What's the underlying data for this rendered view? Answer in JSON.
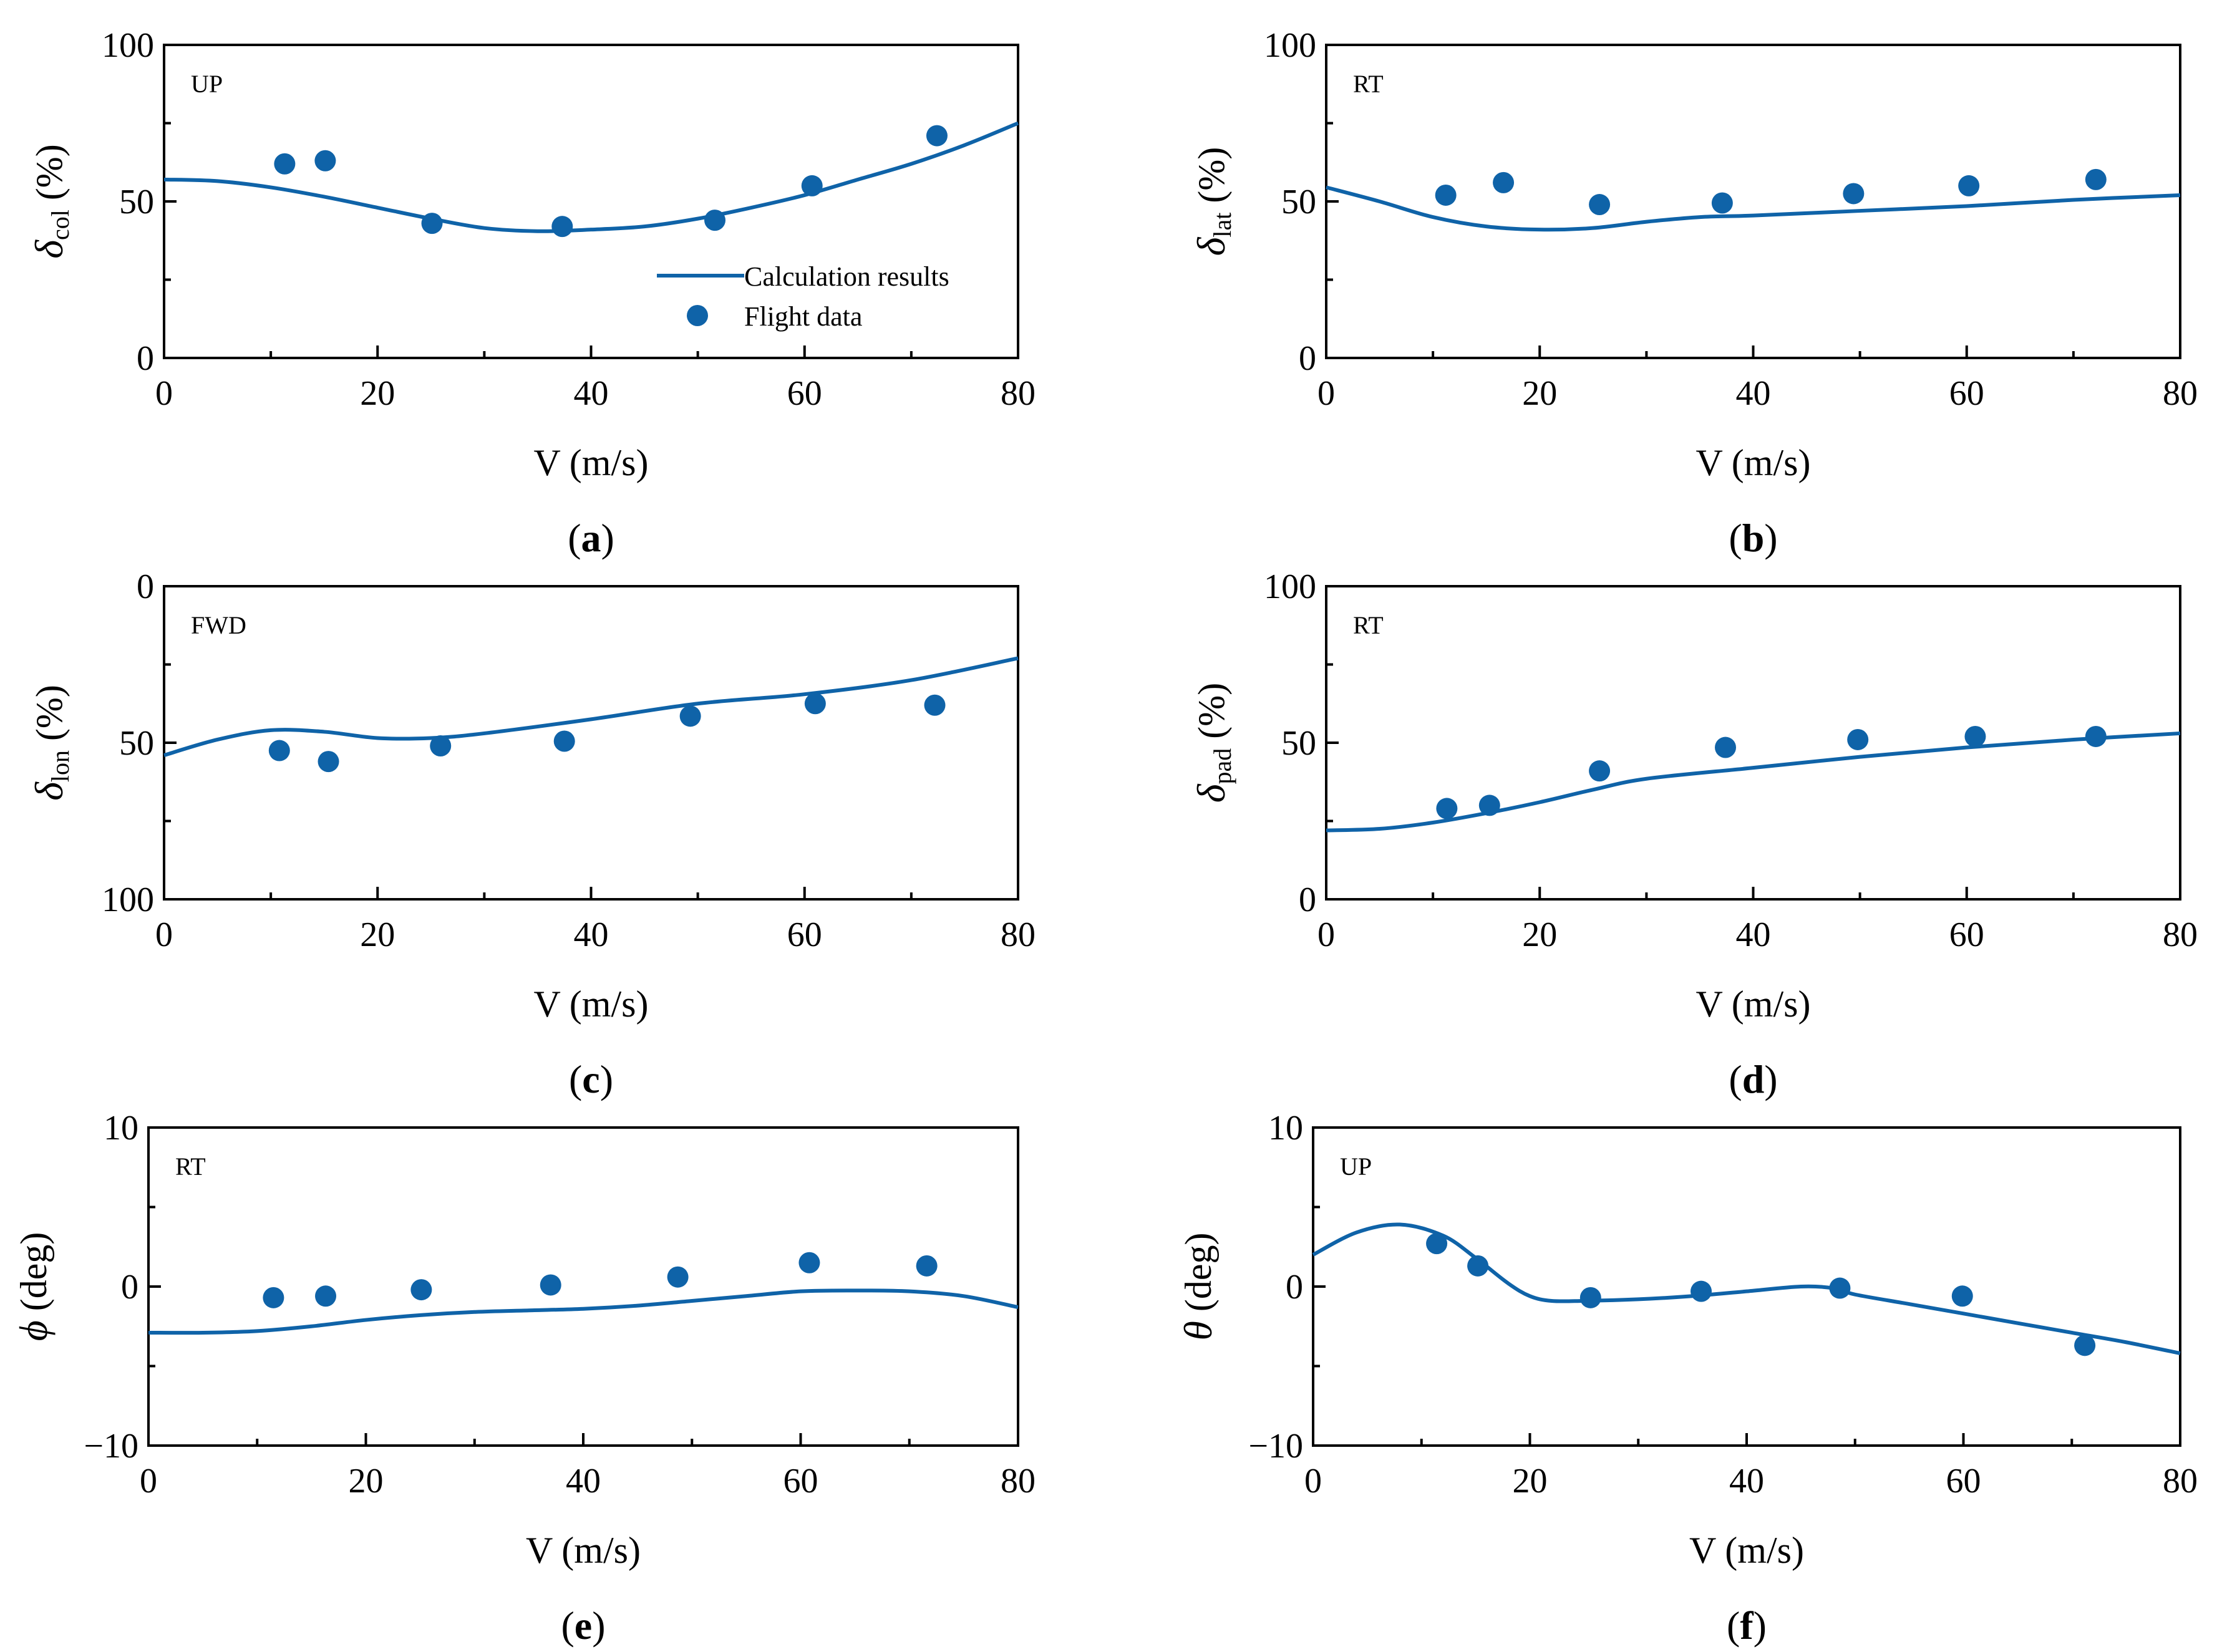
{
  "colors": {
    "series": "#0f63a8",
    "axis": "#000000",
    "background": "#ffffff"
  },
  "chart_data": [
    {
      "id": "a",
      "type": "line",
      "caption": {
        "open": "(",
        "letter": "a",
        "close": ")"
      },
      "annotation": "UP",
      "xlabel": "V (m/s)",
      "ylabel": {
        "symbol": "δ",
        "sub": "col",
        "rest": " (%)"
      },
      "xlim": [
        0,
        80
      ],
      "ylim": [
        0,
        100
      ],
      "y_inverted": false,
      "xticks": [
        0,
        20,
        40,
        60,
        80
      ],
      "yticks": [
        0,
        50,
        100
      ],
      "legend": {
        "position": "bottom-right",
        "line_label": "Calculation results",
        "scatter_label": "Flight data"
      },
      "series": [
        {
          "name": "Calculation results",
          "kind": "line",
          "x": [
            0,
            5,
            10,
            15,
            20,
            25,
            30,
            35,
            40,
            45,
            50,
            55,
            60,
            65,
            70,
            75,
            80
          ],
          "y": [
            57,
            56.5,
            54.5,
            51.5,
            48,
            44.5,
            41.5,
            40.5,
            41,
            42,
            44.5,
            48,
            52,
            57,
            62,
            68,
            75
          ]
        },
        {
          "name": "Flight data",
          "kind": "scatter",
          "x": [
            11.3,
            15.1,
            25.1,
            37.3,
            51.6,
            60.7,
            72.4
          ],
          "y": [
            62,
            63,
            43,
            42,
            44,
            55,
            71
          ]
        }
      ]
    },
    {
      "id": "b",
      "type": "line",
      "caption": {
        "open": "(",
        "letter": "b",
        "close": ")"
      },
      "annotation": "RT",
      "xlabel": "V (m/s)",
      "ylabel": {
        "symbol": "δ",
        "sub": "lat",
        "rest": " (%)"
      },
      "xlim": [
        0,
        80
      ],
      "ylim": [
        0,
        100
      ],
      "y_inverted": false,
      "xticks": [
        0,
        20,
        40,
        60,
        80
      ],
      "yticks": [
        0,
        50,
        100
      ],
      "series": [
        {
          "name": "Calculation results",
          "kind": "line",
          "x": [
            0,
            5,
            10,
            15,
            20,
            25,
            30,
            35,
            40,
            50,
            60,
            70,
            80
          ],
          "y": [
            54.5,
            50,
            45,
            42,
            41,
            41.5,
            43.5,
            45,
            45.5,
            47,
            48.5,
            50.5,
            52
          ]
        },
        {
          "name": "Flight data",
          "kind": "scatter",
          "x": [
            11.2,
            16.6,
            25.6,
            37.1,
            49.4,
            60.2,
            72.1
          ],
          "y": [
            52,
            56,
            49,
            49.5,
            52.5,
            55,
            57
          ]
        }
      ]
    },
    {
      "id": "c",
      "type": "line",
      "caption": {
        "open": "(",
        "letter": "c",
        "close": ")"
      },
      "annotation": "FWD",
      "xlabel": "V (m/s)",
      "ylabel": {
        "symbol": "δ",
        "sub": "lon",
        "rest": " (%)"
      },
      "xlim": [
        0,
        80
      ],
      "ylim": [
        0,
        100
      ],
      "y_inverted": true,
      "xticks": [
        0,
        20,
        40,
        60,
        80
      ],
      "yticks": [
        0,
        50,
        100
      ],
      "series": [
        {
          "name": "Calculation results",
          "kind": "line",
          "x": [
            0,
            5,
            10,
            15,
            20,
            25,
            30,
            40,
            50,
            60,
            70,
            80
          ],
          "y": [
            54,
            49,
            46,
            46.5,
            48.5,
            48.5,
            47,
            42.5,
            37.5,
            34.5,
            30,
            23
          ]
        },
        {
          "name": "Flight data",
          "kind": "scatter",
          "x": [
            10.8,
            15.4,
            25.9,
            37.5,
            49.3,
            61.0,
            72.2
          ],
          "y": [
            52.5,
            56,
            51,
            49.5,
            41.5,
            37.5,
            38
          ]
        }
      ]
    },
    {
      "id": "d",
      "type": "line",
      "caption": {
        "open": "(",
        "letter": "d",
        "close": ")"
      },
      "annotation": "RT",
      "xlabel": "V (m/s)",
      "ylabel": {
        "symbol": "δ",
        "sub": "pad",
        "rest": " (%)"
      },
      "xlim": [
        0,
        80
      ],
      "ylim": [
        0,
        100
      ],
      "y_inverted": false,
      "xticks": [
        0,
        20,
        40,
        60,
        80
      ],
      "yticks": [
        0,
        50,
        100
      ],
      "series": [
        {
          "name": "Calculation results",
          "kind": "line",
          "x": [
            0,
            5,
            10,
            15,
            20,
            25,
            30,
            40,
            50,
            60,
            70,
            80
          ],
          "y": [
            22,
            22.5,
            24.5,
            27.5,
            31,
            35,
            38.5,
            42,
            45.5,
            48.5,
            51,
            53
          ]
        },
        {
          "name": "Flight data",
          "kind": "scatter",
          "x": [
            11.3,
            15.3,
            25.6,
            37.4,
            49.8,
            60.8,
            72.1
          ],
          "y": [
            29,
            30,
            41,
            48.5,
            51,
            52,
            52
          ]
        }
      ]
    },
    {
      "id": "e",
      "type": "line",
      "caption": {
        "open": "(",
        "letter": "e",
        "close": ")"
      },
      "annotation": "RT",
      "xlabel": "V (m/s)",
      "ylabel": {
        "symbol": "ϕ",
        "sub": "",
        "rest": " (deg)"
      },
      "xlim": [
        0,
        80
      ],
      "ylim": [
        -10,
        10
      ],
      "y_inverted": false,
      "xticks": [
        0,
        20,
        40,
        60,
        80
      ],
      "yticks": [
        -10,
        0,
        10
      ],
      "ytick_labels": [
        "−10",
        "0",
        "10"
      ],
      "series": [
        {
          "name": "Calculation results",
          "kind": "line",
          "x": [
            0,
            5,
            10,
            15,
            20,
            25,
            30,
            35,
            40,
            45,
            50,
            55,
            60,
            65,
            70,
            75,
            80
          ],
          "y": [
            -2.9,
            -2.9,
            -2.8,
            -2.5,
            -2.1,
            -1.8,
            -1.6,
            -1.5,
            -1.4,
            -1.2,
            -0.9,
            -0.6,
            -0.3,
            -0.25,
            -0.3,
            -0.6,
            -1.3
          ]
        },
        {
          "name": "Flight data",
          "kind": "scatter",
          "x": [
            11.5,
            16.3,
            25.1,
            37.0,
            48.7,
            60.8,
            71.6
          ],
          "y": [
            -0.7,
            -0.6,
            -0.2,
            0.1,
            0.6,
            1.5,
            1.3
          ]
        }
      ]
    },
    {
      "id": "f",
      "type": "line",
      "caption": {
        "open": "(",
        "letter": "f",
        "close": ")"
      },
      "annotation": "UP",
      "xlabel": "V (m/s)",
      "ylabel": {
        "symbol": "θ",
        "sub": "",
        "rest": " (deg)"
      },
      "xlim": [
        0,
        80
      ],
      "ylim": [
        -10,
        10
      ],
      "y_inverted": false,
      "xticks": [
        0,
        20,
        40,
        60,
        80
      ],
      "yticks": [
        -10,
        0,
        10
      ],
      "ytick_labels": [
        "−10",
        "0",
        "10"
      ],
      "series": [
        {
          "name": "Calculation results",
          "kind": "line",
          "x": [
            0,
            4,
            8,
            12,
            15,
            18,
            20,
            22,
            25,
            30,
            35,
            40,
            45,
            48,
            50,
            55,
            60,
            65,
            70,
            75,
            80
          ],
          "y": [
            2,
            3.4,
            3.9,
            3.2,
            1.8,
            0.2,
            -0.6,
            -0.9,
            -0.9,
            -0.8,
            -0.6,
            -0.3,
            0,
            -0.1,
            -0.5,
            -1.1,
            -1.7,
            -2.3,
            -2.9,
            -3.5,
            -4.2
          ]
        },
        {
          "name": "Flight data",
          "kind": "scatter",
          "x": [
            11.4,
            15.2,
            25.6,
            35.8,
            48.6,
            59.9,
            71.2
          ],
          "y": [
            2.7,
            1.3,
            -0.7,
            -0.3,
            -0.1,
            -0.6,
            -3.7
          ]
        }
      ]
    }
  ]
}
